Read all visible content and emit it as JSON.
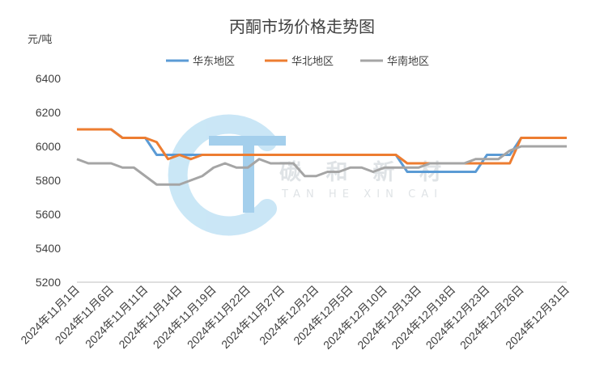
{
  "chart_data": {
    "type": "line",
    "title": "丙酮市场价格走势图",
    "ylabel": "元/吨",
    "ylim": [
      5200,
      6400
    ],
    "yticks": [
      5200,
      5400,
      5600,
      5800,
      6000,
      6200,
      6400
    ],
    "grid": false,
    "legend_position": "top",
    "tick_labels": [
      "2024年11月1日",
      "2024年11月6日",
      "2024年11月11日",
      "2024年11月14日",
      "2024年11月19日",
      "2024年11月22日",
      "2024年11月27日",
      "2024年12月2日",
      "2024年12月5日",
      "2024年12月10日",
      "2024年12月13日",
      "2024年12月18日",
      "2024年12月23日",
      "2024年12月26日",
      "2024年12月31日"
    ],
    "x_count": 44,
    "x_tick_indices": [
      0,
      3,
      6,
      9,
      12,
      15,
      18,
      21,
      24,
      27,
      30,
      33,
      36,
      39,
      43
    ],
    "series": [
      {
        "name": "华东地区",
        "color": "#5b9bd5",
        "values": [
          6100,
          6100,
          6100,
          6100,
          6050,
          6050,
          6050,
          5950,
          5950,
          5950,
          5950,
          5950,
          5950,
          5950,
          5950,
          5950,
          5950,
          5950,
          5950,
          5950,
          5950,
          5950,
          5950,
          5950,
          5950,
          5950,
          5950,
          5950,
          5950,
          5850,
          5850,
          5850,
          5850,
          5850,
          5850,
          5850,
          5950,
          5950,
          5950,
          6050,
          6050,
          6050,
          6050,
          6050
        ]
      },
      {
        "name": "华北地区",
        "color": "#ed7d31",
        "values": [
          6100,
          6100,
          6100,
          6100,
          6050,
          6050,
          6050,
          6025,
          5925,
          5950,
          5925,
          5950,
          5950,
          5950,
          5950,
          5950,
          5950,
          5950,
          5950,
          5950,
          5950,
          5950,
          5950,
          5950,
          5950,
          5950,
          5950,
          5950,
          5950,
          5900,
          5900,
          5900,
          5900,
          5900,
          5900,
          5900,
          5900,
          5900,
          5900,
          6050,
          6050,
          6050,
          6050,
          6050
        ]
      },
      {
        "name": "华南地区",
        "color": "#a5a5a5",
        "values": [
          5925,
          5900,
          5900,
          5900,
          5875,
          5875,
          5825,
          5775,
          5775,
          5775,
          5800,
          5825,
          5875,
          5900,
          5875,
          5875,
          5925,
          5900,
          5900,
          5900,
          5825,
          5825,
          5850,
          5850,
          5875,
          5875,
          5850,
          5875,
          5875,
          5875,
          5875,
          5900,
          5900,
          5900,
          5900,
          5925,
          5925,
          5925,
          5975,
          6000,
          6000,
          6000,
          6000,
          6000
        ]
      }
    ]
  },
  "watermark": {
    "text": "碳和新材",
    "subtext": "TAN  HE  XIN  CAI",
    "colors": [
      "#9fd3ef",
      "#5aa9dd"
    ]
  }
}
